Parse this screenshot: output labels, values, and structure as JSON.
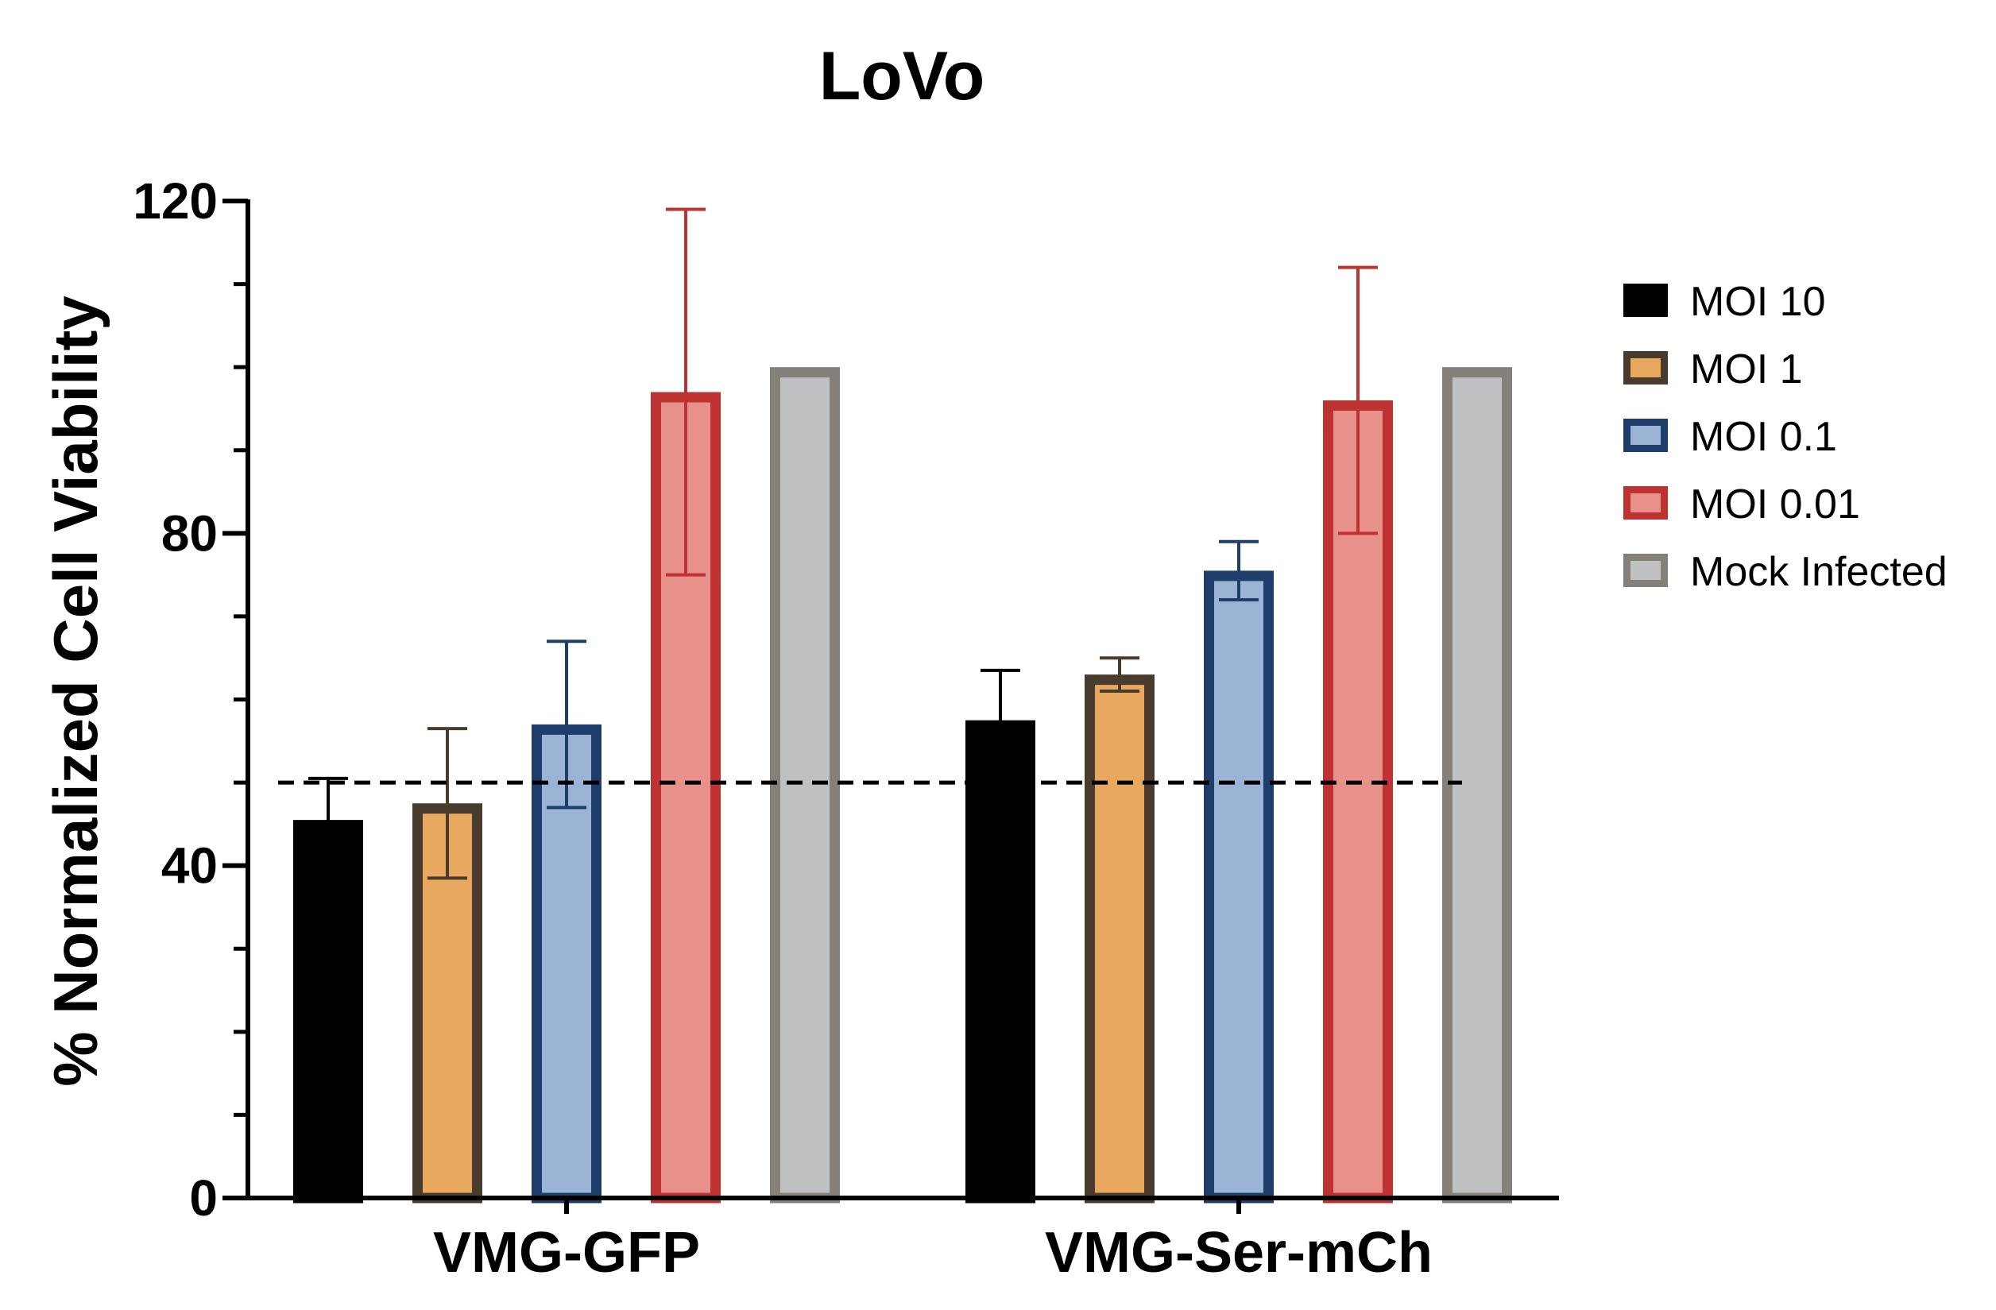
{
  "chart_data": {
    "type": "bar",
    "title": "LoVo",
    "xlabel": "",
    "ylabel": "% Normalized Cell Viability",
    "ylim": [
      0,
      120
    ],
    "yticks": [
      0,
      40,
      80,
      120
    ],
    "minor_tick_step": 10,
    "categories": [
      "VMG-GFP",
      "VMG-Ser-mCh"
    ],
    "reference_line": {
      "y": 50,
      "style": "dashed"
    },
    "legend": {
      "placement": "right"
    },
    "grid": false,
    "series": [
      {
        "name": "MOI 10",
        "values": [
          45.5,
          57.5
        ],
        "errors": [
          5,
          6
        ],
        "fill": "#000000",
        "stroke": "#000000"
      },
      {
        "name": "MOI 1",
        "values": [
          47.5,
          63
        ],
        "errors": [
          9,
          2
        ],
        "fill": "#E8A85F",
        "stroke": "#4A3C2C"
      },
      {
        "name": "MOI 0.1",
        "values": [
          57,
          75.5
        ],
        "errors": [
          10,
          3.5
        ],
        "fill": "#9BB3D4",
        "stroke": "#1E3D6B"
      },
      {
        "name": "MOI 0.01",
        "values": [
          97,
          96
        ],
        "errors": [
          22,
          16
        ],
        "fill": "#E8908A",
        "stroke": "#BE3232"
      },
      {
        "name": "Mock Infected",
        "values": [
          100,
          100
        ],
        "errors": [
          0,
          0
        ],
        "fill": "#BEC0C2",
        "stroke": "#85817A"
      }
    ]
  }
}
